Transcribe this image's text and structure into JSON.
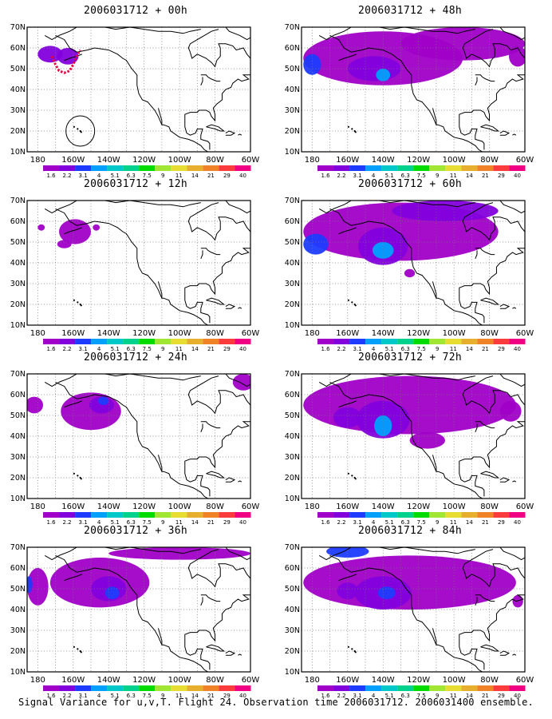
{
  "figure": {
    "footer": "Signal Variance for u,v,T. Flight 24. Observation time 2006031712. 2006031400 ensemble."
  },
  "map": {
    "lat_labels": [
      "70N",
      "60N",
      "50N",
      "40N",
      "30N",
      "20N",
      "10N"
    ],
    "lon_labels": [
      "180",
      "160W",
      "140W",
      "120W",
      "100W",
      "80W",
      "60W"
    ],
    "extent": {
      "lon": [
        -186,
        -60
      ],
      "lat": [
        10,
        70
      ]
    }
  },
  "colorbar": {
    "levels": [
      "1.6",
      "2.2",
      "3.1",
      "4",
      "5.1",
      "6.3",
      "7.5",
      "9",
      "11",
      "14",
      "21",
      "29",
      "40"
    ],
    "colors": [
      "#a000c8",
      "#8200dc",
      "#1e3cff",
      "#00a0ff",
      "#00c8c8",
      "#00d28c",
      "#00dc00",
      "#a0e632",
      "#e6dc32",
      "#e6af2d",
      "#f08228",
      "#fa3c3c",
      "#f00082"
    ]
  },
  "panels": [
    {
      "title": "2006031712 + 00h",
      "col": 0,
      "row": 0,
      "obs": true,
      "blobs": [
        {
          "lon": -173,
          "lat": 57,
          "rx": 7,
          "ry": 4,
          "c": 1
        },
        {
          "lon": -163,
          "lat": 56,
          "rx": 6,
          "ry": 4,
          "c": 1
        }
      ]
    },
    {
      "title": "2006031712 + 12h",
      "col": 0,
      "row": 1,
      "blobs": [
        {
          "lon": -159,
          "lat": 55,
          "rx": 9,
          "ry": 6,
          "c": 0
        },
        {
          "lon": -165,
          "lat": 49,
          "rx": 4,
          "ry": 2,
          "c": 0
        },
        {
          "lon": -178,
          "lat": 57,
          "rx": 2,
          "ry": 1.5,
          "c": 0
        },
        {
          "lon": -147,
          "lat": 57,
          "rx": 2,
          "ry": 1.5,
          "c": 0
        }
      ]
    },
    {
      "title": "2006031712 + 24h",
      "col": 0,
      "row": 2,
      "blobs": [
        {
          "lon": -150,
          "lat": 52,
          "rx": 17,
          "ry": 9,
          "c": 0
        },
        {
          "lon": -144,
          "lat": 55,
          "rx": 7,
          "ry": 4,
          "c": 1
        },
        {
          "lon": -143,
          "lat": 57,
          "rx": 3,
          "ry": 2,
          "c": 2
        },
        {
          "lon": -182,
          "lat": 55,
          "rx": 5,
          "ry": 4,
          "c": 0
        },
        {
          "lon": -64,
          "lat": 66,
          "rx": 6,
          "ry": 4,
          "c": 0
        }
      ]
    },
    {
      "title": "2006031712 + 36h",
      "col": 0,
      "row": 3,
      "blobs": [
        {
          "lon": -145,
          "lat": 53,
          "rx": 28,
          "ry": 12,
          "c": 0
        },
        {
          "lon": -140,
          "lat": 50,
          "rx": 10,
          "ry": 6,
          "c": 1
        },
        {
          "lon": -138,
          "lat": 48,
          "rx": 4,
          "ry": 3,
          "c": 2
        },
        {
          "lon": -180,
          "lat": 51,
          "rx": 6,
          "ry": 9,
          "c": 0
        },
        {
          "lon": -185,
          "lat": 52,
          "rx": 2,
          "ry": 4,
          "c": 2
        },
        {
          "lon": -100,
          "lat": 67,
          "rx": 40,
          "ry": 3,
          "c": 0
        }
      ]
    },
    {
      "title": "2006031712 + 48h",
      "col": 1,
      "row": 0,
      "blobs": [
        {
          "lon": -140,
          "lat": 55,
          "rx": 45,
          "ry": 13,
          "c": 0
        },
        {
          "lon": -95,
          "lat": 62,
          "rx": 35,
          "ry": 8,
          "c": 0
        },
        {
          "lon": -145,
          "lat": 50,
          "rx": 15,
          "ry": 6,
          "c": 1
        },
        {
          "lon": -140,
          "lat": 47,
          "rx": 4,
          "ry": 3,
          "c": 3
        },
        {
          "lon": -180,
          "lat": 52,
          "rx": 5,
          "ry": 5,
          "c": 2
        },
        {
          "lon": -64,
          "lat": 56,
          "rx": 5,
          "ry": 5,
          "c": 0
        }
      ]
    },
    {
      "title": "2006031712 + 60h",
      "col": 1,
      "row": 1,
      "blobs": [
        {
          "lon": -130,
          "lat": 55,
          "rx": 55,
          "ry": 14,
          "c": 0
        },
        {
          "lon": -140,
          "lat": 48,
          "rx": 14,
          "ry": 9,
          "c": 1
        },
        {
          "lon": -140,
          "lat": 46,
          "rx": 6,
          "ry": 4,
          "c": 3
        },
        {
          "lon": -178,
          "lat": 49,
          "rx": 7,
          "ry": 5,
          "c": 2
        },
        {
          "lon": -105,
          "lat": 65,
          "rx": 30,
          "ry": 5,
          "c": 1
        },
        {
          "lon": -125,
          "lat": 35,
          "rx": 3,
          "ry": 2,
          "c": 0
        }
      ]
    },
    {
      "title": "2006031712 + 72h",
      "col": 1,
      "row": 2,
      "blobs": [
        {
          "lon": -125,
          "lat": 55,
          "rx": 60,
          "ry": 14,
          "c": 0
        },
        {
          "lon": -140,
          "lat": 48,
          "rx": 15,
          "ry": 9,
          "c": 1
        },
        {
          "lon": -140,
          "lat": 45,
          "rx": 5,
          "ry": 5,
          "c": 3
        },
        {
          "lon": -160,
          "lat": 49,
          "rx": 8,
          "ry": 5,
          "c": 1
        },
        {
          "lon": -115,
          "lat": 38,
          "rx": 10,
          "ry": 4,
          "c": 0
        },
        {
          "lon": -68,
          "lat": 52,
          "rx": 6,
          "ry": 5,
          "c": 0
        }
      ]
    },
    {
      "title": "2006031712 + 84h",
      "col": 1,
      "row": 3,
      "blobs": [
        {
          "lon": -125,
          "lat": 53,
          "rx": 60,
          "ry": 13,
          "c": 0
        },
        {
          "lon": -140,
          "lat": 48,
          "rx": 16,
          "ry": 8,
          "c": 1
        },
        {
          "lon": -138,
          "lat": 48,
          "rx": 5,
          "ry": 3,
          "c": 2
        },
        {
          "lon": -160,
          "lat": 49,
          "rx": 6,
          "ry": 4,
          "c": 1
        },
        {
          "lon": -160,
          "lat": 68,
          "rx": 12,
          "ry": 3,
          "c": 2
        },
        {
          "lon": -64,
          "lat": 44,
          "rx": 3,
          "ry": 3,
          "c": 0
        }
      ]
    }
  ]
}
